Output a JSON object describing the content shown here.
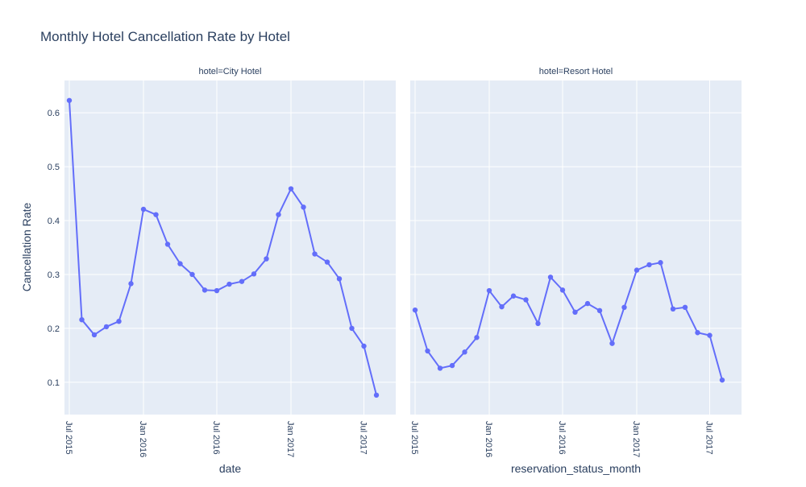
{
  "title": "Monthly Hotel Cancellation Rate by Hotel",
  "ylabel": "Cancellation Rate",
  "colors": {
    "line": "#636efa",
    "plot_bg": "#e5ecf6",
    "grid": "#ffffff",
    "text": "#2a3f5f"
  },
  "chart_data": [
    {
      "type": "line",
      "facet_title": "hotel=City Hotel",
      "xlabel": "date",
      "xlim": [
        "2015-06-19",
        "2017-09-18"
      ],
      "ylim": [
        0.04,
        0.66
      ],
      "x_ticks": [
        "2015-07-01",
        "2016-01-01",
        "2016-07-01",
        "2017-01-01",
        "2017-07-01"
      ],
      "x_tick_labels": [
        "Jul 2015",
        "Jan 2016",
        "Jul 2016",
        "Jan 2017",
        "Jul 2017"
      ],
      "y_ticks": [
        0.1,
        0.2,
        0.3,
        0.4,
        0.5,
        0.6
      ],
      "y_tick_labels": [
        "0.1",
        "0.2",
        "0.3",
        "0.4",
        "0.5",
        "0.6"
      ],
      "series": [
        {
          "x": [
            "2015-07-01",
            "2015-08-01",
            "2015-09-01",
            "2015-10-01",
            "2015-11-01",
            "2015-12-01",
            "2016-01-01",
            "2016-02-01",
            "2016-03-01",
            "2016-04-01",
            "2016-05-01",
            "2016-06-01",
            "2016-07-01",
            "2016-08-01",
            "2016-09-01",
            "2016-10-01",
            "2016-11-01",
            "2016-12-01",
            "2017-01-01",
            "2017-02-01",
            "2017-03-01",
            "2017-04-01",
            "2017-05-01",
            "2017-06-01",
            "2017-07-01",
            "2017-08-01"
          ],
          "y": [
            0.623,
            0.216,
            0.188,
            0.203,
            0.213,
            0.283,
            0.421,
            0.411,
            0.356,
            0.32,
            0.3,
            0.271,
            0.27,
            0.282,
            0.287,
            0.301,
            0.329,
            0.411,
            0.459,
            0.425,
            0.338,
            0.323,
            0.292,
            0.2,
            0.167,
            0.076
          ]
        }
      ]
    },
    {
      "type": "line",
      "facet_title": "hotel=Resort Hotel",
      "xlabel": "reservation_status_month",
      "xlim": [
        "2015-06-19",
        "2017-09-18"
      ],
      "ylim": [
        0.04,
        0.66
      ],
      "x_ticks": [
        "2015-07-01",
        "2016-01-01",
        "2016-07-01",
        "2017-01-01",
        "2017-07-01"
      ],
      "x_tick_labels": [
        "Jul 2015",
        "Jan 2016",
        "Jul 2016",
        "Jan 2017",
        "Jul 2017"
      ],
      "series": [
        {
          "x": [
            "2015-07-01",
            "2015-08-01",
            "2015-09-01",
            "2015-10-01",
            "2015-11-01",
            "2015-12-01",
            "2016-01-01",
            "2016-02-01",
            "2016-03-01",
            "2016-04-01",
            "2016-05-01",
            "2016-06-01",
            "2016-07-01",
            "2016-08-01",
            "2016-09-01",
            "2016-10-01",
            "2016-11-01",
            "2016-12-01",
            "2017-01-01",
            "2017-02-01",
            "2017-03-01",
            "2017-04-01",
            "2017-05-01",
            "2017-06-01",
            "2017-07-01",
            "2017-08-01"
          ],
          "y": [
            0.234,
            0.158,
            0.126,
            0.131,
            0.156,
            0.183,
            0.27,
            0.24,
            0.26,
            0.253,
            0.209,
            0.295,
            0.271,
            0.23,
            0.246,
            0.233,
            0.172,
            0.239,
            0.308,
            0.318,
            0.322,
            0.236,
            0.239,
            0.192,
            0.187,
            0.104
          ]
        }
      ]
    }
  ]
}
